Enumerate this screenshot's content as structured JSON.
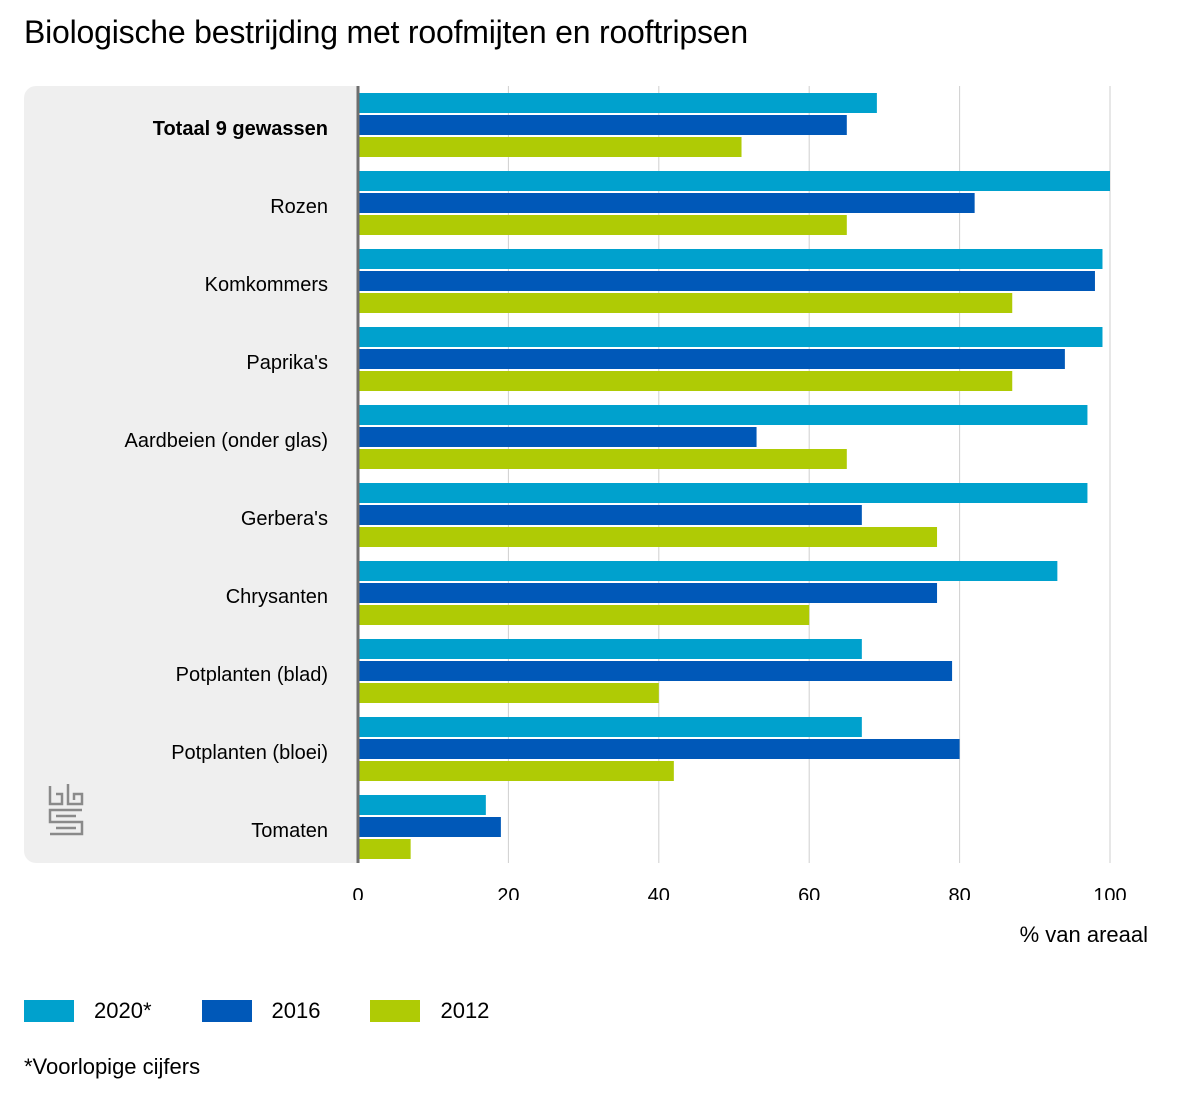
{
  "title": "Biologische bestrijding met roofmijten en rooftripsen",
  "axis_title": "% van areaal",
  "footnote": "*Voorlopige cijfers",
  "logo": "cbs-logo",
  "chart_data": {
    "type": "bar",
    "orientation": "horizontal",
    "categories": [
      "Totaal 9 gewassen",
      "Rozen",
      "Komkommers",
      "Paprika's",
      "Aardbeien (onder glas)",
      "Gerbera's",
      "Chrysanten",
      "Potplanten (blad)",
      "Potplanten (bloei)",
      "Tomaten"
    ],
    "bold_categories": [
      "Totaal 9 gewassen"
    ],
    "series": [
      {
        "name": "2020*",
        "color": "#00a1cd",
        "values": [
          69,
          100,
          99,
          99,
          97,
          97,
          93,
          67,
          67,
          17
        ]
      },
      {
        "name": "2016",
        "color": "#0058b8",
        "values": [
          65,
          82,
          98,
          94,
          53,
          67,
          77,
          79,
          80,
          19
        ]
      },
      {
        "name": "2012",
        "color": "#afcb05",
        "values": [
          51,
          65,
          87,
          87,
          65,
          77,
          60,
          40,
          42,
          7
        ]
      }
    ],
    "xlim": [
      0,
      100
    ],
    "xticks": [
      0,
      20,
      40,
      60,
      80,
      100
    ],
    "grid": true,
    "legend_position": "bottom-left"
  }
}
